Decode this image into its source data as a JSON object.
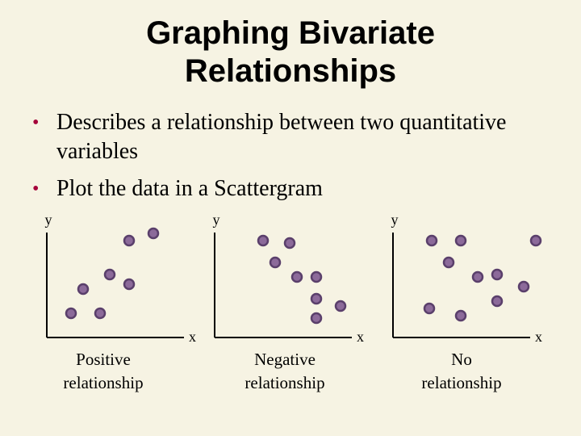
{
  "title": {
    "line1": "Graphing Bivariate",
    "line2": "Relationships"
  },
  "bullets": [
    {
      "text": "Describes a relationship between two quantitative variables"
    },
    {
      "text": "Plot the data in a Scattergram"
    }
  ],
  "colors": {
    "background": "#f6f3e3",
    "point_fill": "#8c6a9a",
    "point_stroke": "#5a3f6b",
    "bullet": "#a5003a"
  },
  "chart_data": [
    {
      "type": "scatter",
      "xlabel": "x",
      "ylabel": "y",
      "caption": [
        "Positive",
        "relationship"
      ],
      "points": [
        [
          1,
          1
        ],
        [
          1.5,
          2
        ],
        [
          2.2,
          1
        ],
        [
          2.6,
          2.6
        ],
        [
          3.4,
          2.2
        ],
        [
          3.4,
          4
        ],
        [
          4.4,
          4.3
        ]
      ],
      "xlim": [
        0,
        7
      ],
      "ylim": [
        0,
        7
      ]
    },
    {
      "type": "scatter",
      "xlabel": "x",
      "ylabel": "y",
      "caption": [
        "Negative",
        "relationship"
      ],
      "points": [
        [
          2,
          4
        ],
        [
          2.5,
          3.1
        ],
        [
          3.1,
          3.9
        ],
        [
          3.4,
          2.5
        ],
        [
          4.2,
          2.5
        ],
        [
          4.2,
          1.6
        ],
        [
          4.2,
          0.8
        ],
        [
          5.2,
          1.3
        ]
      ],
      "xlim": [
        0,
        7
      ],
      "ylim": [
        0,
        7
      ]
    },
    {
      "type": "scatter",
      "xlabel": "x",
      "ylabel": "y",
      "caption": [
        "No",
        "relationship"
      ],
      "points": [
        [
          1.5,
          1.2
        ],
        [
          1.6,
          4
        ],
        [
          2.3,
          3.1
        ],
        [
          2.8,
          4
        ],
        [
          2.8,
          0.9
        ],
        [
          3.5,
          2.5
        ],
        [
          4.3,
          2.6
        ],
        [
          4.3,
          1.5
        ],
        [
          5.4,
          2.1
        ],
        [
          5.9,
          4
        ]
      ],
      "xlim": [
        0,
        7
      ],
      "ylim": [
        0,
        7
      ]
    }
  ]
}
